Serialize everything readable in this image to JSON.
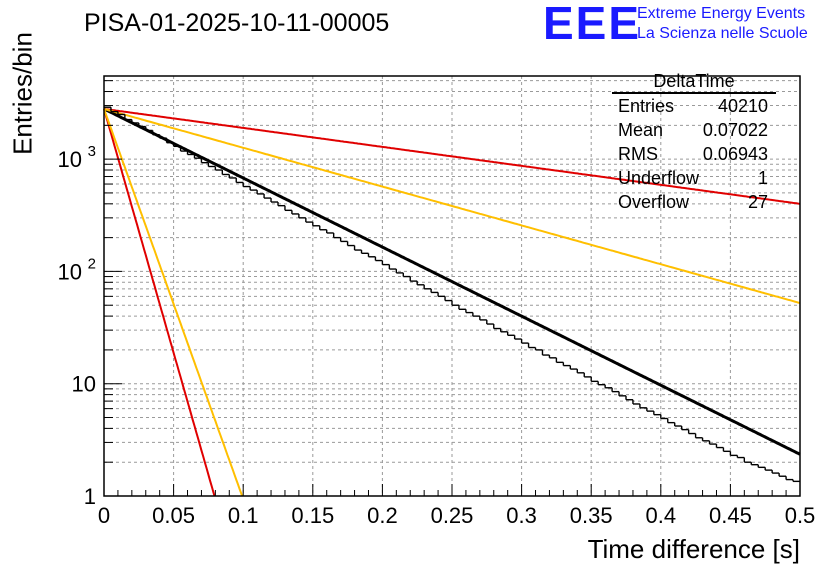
{
  "title": "PISA-01-2025-10-11-00005",
  "logo": {
    "mark": "EEE",
    "line1": "Extreme Energy Events",
    "line2": "La Scienza nelle Scuole",
    "color": "#1a1aff"
  },
  "stats_box": {
    "name": "DeltaTime",
    "rows": [
      {
        "key": "Entries",
        "value": "40210"
      },
      {
        "key": "Mean",
        "value": "0.07022"
      },
      {
        "key": "RMS",
        "value": "0.06943"
      },
      {
        "key": "Underflow",
        "value": "1"
      },
      {
        "key": "Overflow",
        "value": "27"
      }
    ]
  },
  "chart_data": {
    "type": "histogram",
    "title": "PISA-01-2025-10-11-00005",
    "xlabel": "Time difference [s]",
    "ylabel": "Entries/bin",
    "xlim": [
      0,
      0.5
    ],
    "ylim": [
      1,
      5500
    ],
    "yscale": "log",
    "grid": true,
    "x_ticks": [
      "0",
      "0.05",
      "0.1",
      "0.15",
      "0.2",
      "0.25",
      "0.3",
      "0.35",
      "0.4",
      "0.45",
      "0.5"
    ],
    "y_ticks": [
      {
        "value": 1,
        "label": "1"
      },
      {
        "value": 10,
        "label": "10"
      },
      {
        "value": 100,
        "label": "10",
        "exp": "2"
      },
      {
        "value": 1000,
        "label": "10",
        "exp": "3"
      }
    ],
    "histogram": {
      "name": "DeltaTime",
      "bin_width": 0.005,
      "color": "#000000",
      "values": [
        2900,
        2650,
        2500,
        2250,
        2100,
        1950,
        1800,
        1650,
        1540,
        1400,
        1300,
        1180,
        1100,
        1020,
        930,
        860,
        800,
        730,
        680,
        620,
        570,
        530,
        490,
        450,
        415,
        385,
        350,
        325,
        300,
        275,
        255,
        235,
        220,
        200,
        185,
        170,
        155,
        145,
        135,
        125,
        115,
        105,
        97,
        90,
        82,
        76,
        70,
        65,
        60,
        55,
        50,
        46,
        43,
        40,
        37,
        34,
        31,
        29,
        27,
        25,
        23,
        21,
        20,
        18,
        17,
        15.5,
        14.5,
        13.5,
        12.5,
        11.5,
        10.5,
        9.8,
        9.2,
        8.5,
        7.8,
        7.2,
        6.6,
        6.1,
        5.7,
        5.3,
        4.9,
        4.5,
        4.2,
        3.9,
        3.6,
        3.3,
        3.1,
        2.9,
        2.7,
        2.5,
        2.3,
        2.2,
        2.0,
        1.9,
        1.8,
        1.7,
        1.6,
        1.5,
        1.4,
        1.35
      ]
    },
    "fits": [
      {
        "name": "fit",
        "color": "#000000",
        "A": 2800,
        "tau": 0.0706,
        "width": 3
      },
      {
        "name": "upper-red",
        "color": "#e00000",
        "A": 2800,
        "tau": 0.257,
        "width": 2
      },
      {
        "name": "upper-yellow",
        "color": "#ffbf00",
        "A": 2800,
        "tau": 0.1256,
        "width": 2
      },
      {
        "name": "lower-red",
        "color": "#e00000",
        "A": 2800,
        "tau": 0.01,
        "width": 2
      },
      {
        "name": "lower-yellow",
        "color": "#ffbf00",
        "A": 2800,
        "tau": 0.0125,
        "width": 2
      }
    ]
  }
}
